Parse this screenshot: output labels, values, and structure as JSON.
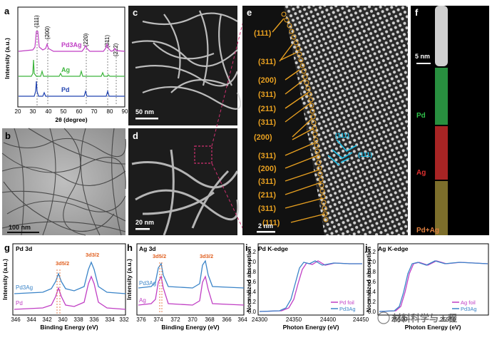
{
  "panel_labels": {
    "a": "a",
    "b": "b",
    "c": "c",
    "d": "d",
    "e": "e",
    "f": "f",
    "g": "g",
    "h": "h",
    "i": "i",
    "j": "j"
  },
  "colors": {
    "pd3ag": "#c03ec4",
    "ag": "#3cb43c",
    "pd": "#2244b0",
    "pd_foil": "#c03ec4",
    "pd3ag_line": "#3a84c8",
    "orange": "#e8a020",
    "cyan": "#22c0e8",
    "pink": "#d03070"
  },
  "panel_a": {
    "ylabel": "Intensity (a.u.)",
    "xlabel": "2θ (degree)",
    "xticks": [
      "20",
      "30",
      "40",
      "50",
      "60",
      "70",
      "80",
      "90"
    ],
    "peaks": [
      "(111)",
      "(200)",
      "(220)",
      "(311)",
      "(222)"
    ],
    "series": [
      "Pd3Ag",
      "Ag",
      "Pd"
    ]
  },
  "scalebars": {
    "b": "100 nm",
    "c": "50 nm",
    "d": "20 nm",
    "e": "2 nm",
    "f": "5 nm"
  },
  "panel_e": {
    "planes": [
      "(111)",
      "(311)",
      "(200)",
      "(311)",
      "(211)",
      "(311)",
      "(200)",
      "(311)",
      "(200)",
      "(311)",
      "(211)",
      "(311)",
      "(111)"
    ],
    "cyan_planes": [
      "(111)",
      "(111)"
    ]
  },
  "panel_f": {
    "labels": [
      "Pd",
      "Ag",
      "Pd+Ag"
    ]
  },
  "panel_g": {
    "title": "Pd 3d",
    "ylabel": "Intensity (a.u.)",
    "xlabel": "Binding Energy (eV)",
    "xticks": [
      "346",
      "344",
      "342",
      "340",
      "338",
      "336",
      "334",
      "332"
    ],
    "peak1": "3d5/2",
    "peak2": "3d3/2",
    "series": [
      "Pd3Ag",
      "Pd"
    ]
  },
  "panel_h": {
    "title": "Ag 3d",
    "ylabel": "Intensity (a.u.)",
    "xlabel": "Binding Energy (eV)",
    "xticks": [
      "376",
      "374",
      "372",
      "370",
      "368",
      "366",
      "364"
    ],
    "peak1": "3d5/2",
    "peak2": "3d3/2",
    "series": [
      "Pd3Ag",
      "Ag"
    ]
  },
  "panel_i": {
    "title": "Pd K-edge",
    "ylabel": "Normalized absorption",
    "xlabel": "Photon Energy (eV)",
    "xticks": [
      "24300",
      "24350",
      "24400",
      "24450"
    ],
    "yticks": [
      "0.0",
      "0.2",
      "0.4",
      "0.6",
      "0.8",
      "1.0",
      "1.2"
    ],
    "legend": [
      "Pd foil",
      "Pd3Ag"
    ]
  },
  "panel_j": {
    "title": "Ag K-edge",
    "ylabel": "Normalized absorption",
    "xlabel": "Photon Energy (eV)",
    "xticks": [
      "25500",
      "25550"
    ],
    "yticks": [
      "0.0",
      "0.2",
      "0.4",
      "0.6",
      "0.8",
      "1.0",
      "1.2"
    ],
    "legend": [
      "Ag foil",
      "Pd3Ag"
    ]
  },
  "watermark": "材料科学与工程"
}
